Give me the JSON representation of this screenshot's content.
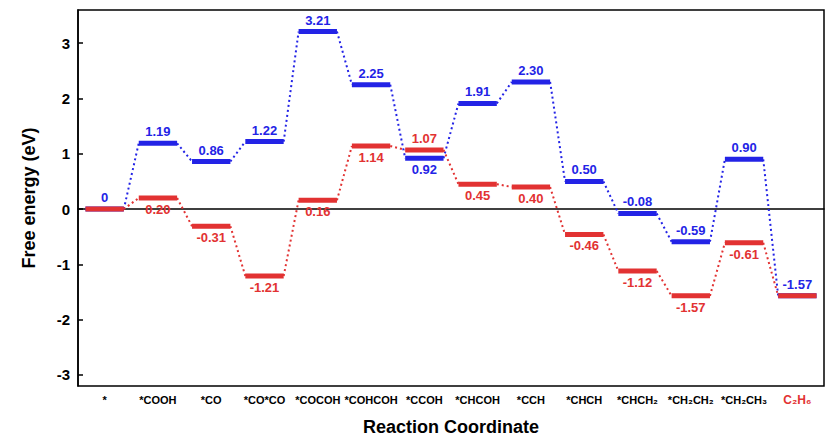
{
  "chart_data": {
    "type": "line",
    "x_label": "Reaction Coordinate",
    "y_label": "Free energy (eV)",
    "categories": [
      "*",
      "*COOH",
      "*CO",
      "*CO*CO",
      "*COCOH",
      "*COHCOH",
      "*CCOH",
      "*CHCOH",
      "*CCH",
      "*CHCH",
      "*CHCH₂",
      "*CH₂CH₂",
      "*CH₂CH₃",
      "C₂H₆"
    ],
    "ylim": [
      -3.2,
      3.6
    ],
    "yticks": [
      -3,
      -2,
      -1,
      0,
      1,
      2,
      3
    ],
    "data_labels": true,
    "line_style": "dotted",
    "series": [
      {
        "color": "#2323e6",
        "values": [
          0,
          1.19,
          0.86,
          1.22,
          3.21,
          2.25,
          0.92,
          1.91,
          2.3,
          0.5,
          -0.08,
          -0.59,
          0.9,
          -1.57
        ],
        "value_labels": [
          "0",
          "1.19",
          "0.86",
          "1.22",
          "3.21",
          "2.25",
          "0.92",
          "1.91",
          "2.30",
          "0.50",
          "-0.08",
          "-0.59",
          "0.90",
          "-1.57"
        ]
      },
      {
        "color": "#e23232",
        "values": [
          0,
          0.2,
          -0.31,
          -1.21,
          0.16,
          1.14,
          1.07,
          0.45,
          0.4,
          -0.46,
          -1.12,
          -1.57,
          -0.61,
          -1.57
        ],
        "value_labels": [
          null,
          "0.20",
          "-0.31",
          "-1.21",
          "0.16",
          "1.14",
          "1.07",
          "0.45",
          "0.40",
          "-0.46",
          "-1.12",
          "-1.57",
          "-0.61",
          null
        ]
      }
    ]
  }
}
